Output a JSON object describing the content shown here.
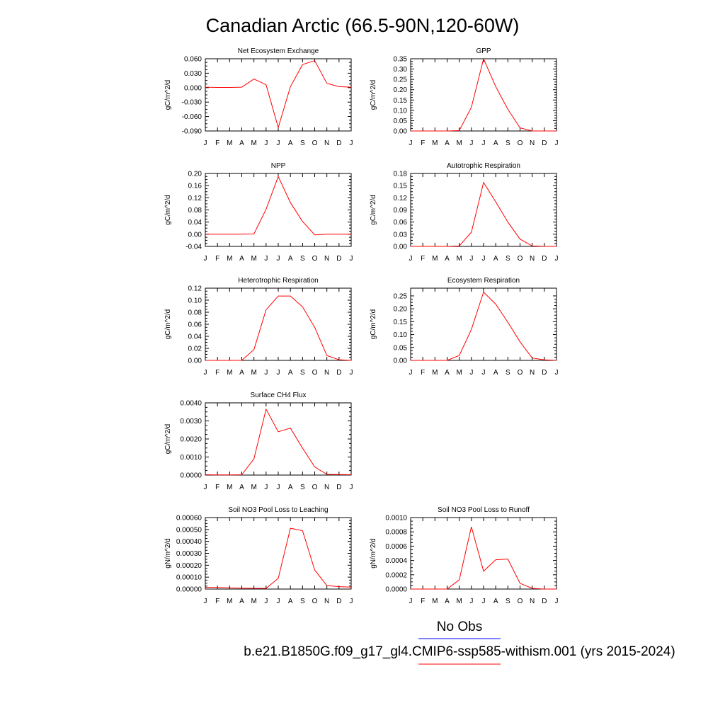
{
  "title": "Canadian Arctic (66.5-90N,120-60W)",
  "colors": {
    "model_line": "#ff0000",
    "obs_line": "#0000ff",
    "axis": "#000000"
  },
  "months": [
    "J",
    "F",
    "M",
    "A",
    "M",
    "J",
    "J",
    "A",
    "S",
    "O",
    "N",
    "D",
    "J"
  ],
  "legend": {
    "obs_label": "No Obs",
    "model_label": "b.e21.B1850G.f09_g17_gl4.CMIP6-ssp585-withism.001 (yrs 2015-2024)"
  },
  "chart_data": [
    {
      "type": "line",
      "title": "Net Ecosystem Exchange",
      "ylabel": "gC/m^2/d",
      "ylim": [
        -0.09,
        0.06
      ],
      "yticks": [
        0.06,
        0.03,
        0.0,
        -0.03,
        -0.06,
        -0.09
      ],
      "ytick_labels": [
        "0.060",
        "0.030",
        "0.000",
        "-0.030",
        "-0.060",
        "-0.090"
      ],
      "values": [
        0.001,
        0.0005,
        0.0005,
        0.001,
        0.018,
        0.006,
        -0.083,
        0.002,
        0.048,
        0.056,
        0.009,
        0.002,
        0.001
      ]
    },
    {
      "type": "line",
      "title": "GPP",
      "ylabel": "gC/m^2/d",
      "ylim": [
        0,
        0.35
      ],
      "yticks": [
        0.35,
        0.3,
        0.25,
        0.2,
        0.15,
        0.1,
        0.05,
        0.0
      ],
      "ytick_labels": [
        "0.35",
        "0.30",
        "0.25",
        "0.20",
        "0.15",
        "0.10",
        "0.05",
        "0.00"
      ],
      "values": [
        0,
        0,
        0,
        0,
        0.002,
        0.115,
        0.35,
        0.215,
        0.105,
        0.015,
        0,
        0,
        0
      ]
    },
    {
      "type": "line",
      "title": "NPP",
      "ylabel": "gC/m^2/d",
      "ylim": [
        -0.04,
        0.2
      ],
      "yticks": [
        0.2,
        0.16,
        0.12,
        0.08,
        0.04,
        0.0,
        -0.04
      ],
      "ytick_labels": [
        "0.20",
        "0.16",
        "0.12",
        "0.08",
        "0.04",
        "0.00",
        "-0.04"
      ],
      "values": [
        0,
        0,
        0,
        0,
        0.001,
        0.082,
        0.19,
        0.104,
        0.042,
        -0.002,
        0,
        0,
        0
      ]
    },
    {
      "type": "line",
      "title": "Autotrophic Respiration",
      "ylabel": "gC/m^2/d",
      "ylim": [
        0,
        0.18
      ],
      "yticks": [
        0.18,
        0.15,
        0.12,
        0.09,
        0.06,
        0.03,
        0.0
      ],
      "ytick_labels": [
        "0.18",
        "0.15",
        "0.12",
        "0.09",
        "0.06",
        "0.03",
        "0.00"
      ],
      "values": [
        0,
        0,
        0,
        0,
        0.001,
        0.035,
        0.158,
        0.11,
        0.06,
        0.018,
        0.001,
        0,
        0
      ]
    },
    {
      "type": "line",
      "title": "Heterotrophic Respiration",
      "ylabel": "gC/m^2/d",
      "ylim": [
        0,
        0.12
      ],
      "yticks": [
        0.12,
        0.1,
        0.08,
        0.06,
        0.04,
        0.02,
        0.0
      ],
      "ytick_labels": [
        "0.12",
        "0.10",
        "0.08",
        "0.06",
        "0.04",
        "0.02",
        "0.00"
      ],
      "values": [
        0,
        0,
        0,
        0,
        0.018,
        0.084,
        0.107,
        0.107,
        0.089,
        0.055,
        0.008,
        0.001,
        0
      ]
    },
    {
      "type": "line",
      "title": "Ecosystem Respiration",
      "ylabel": "gC/m^2/d",
      "ylim": [
        0,
        0.28
      ],
      "yticks": [
        0.25,
        0.2,
        0.15,
        0.1,
        0.05,
        0.0
      ],
      "ytick_labels": [
        "0.25",
        "0.20",
        "0.15",
        "0.10",
        "0.05",
        "0.00"
      ],
      "values": [
        0,
        0,
        0,
        0,
        0.019,
        0.12,
        0.265,
        0.218,
        0.148,
        0.072,
        0.009,
        0.002,
        0
      ]
    },
    {
      "type": "line",
      "title": "Surface CH4 Flux",
      "ylabel": "gC/m^2/d",
      "ylim": [
        0,
        0.004
      ],
      "yticks": [
        0.004,
        0.003,
        0.002,
        0.001,
        0.0
      ],
      "ytick_labels": [
        "0.0040",
        "0.0030",
        "0.0020",
        "0.0010",
        "0.0000"
      ],
      "values": [
        2e-05,
        1e-05,
        1e-05,
        2e-05,
        0.0009,
        0.00365,
        0.0024,
        0.0026,
        0.0015,
        0.00045,
        4e-05,
        3e-05,
        2e-05
      ]
    },
    {
      "type": "line",
      "title": "Soil NO3 Pool Loss to Leaching",
      "ylabel": "gN/m^2/d",
      "ylim": [
        0,
        0.0006
      ],
      "yticks": [
        0.0006,
        0.0005,
        0.0004,
        0.0003,
        0.0002,
        0.0001,
        0.0
      ],
      "ytick_labels": [
        "0.00060",
        "0.00050",
        "0.00040",
        "0.00030",
        "0.00020",
        "0.00010",
        "0.00000"
      ],
      "values": [
        1.5e-05,
        1.3e-05,
        1e-05,
        8e-06,
        6e-06,
        6e-06,
        9e-05,
        0.00051,
        0.00049,
        0.00016,
        3e-05,
        2e-05,
        1.6e-05
      ]
    },
    {
      "type": "line",
      "title": "Soil NO3 Pool Loss to Runoff",
      "ylabel": "gN/m^2/d",
      "ylim": [
        0,
        0.001
      ],
      "yticks": [
        0.001,
        0.0008,
        0.0006,
        0.0004,
        0.0002,
        0.0
      ],
      "ytick_labels": [
        "0.0010",
        "0.0008",
        "0.0006",
        "0.0004",
        "0.0002",
        "0.0000"
      ],
      "values": [
        0,
        0,
        0,
        0,
        0.00013,
        0.00087,
        0.00025,
        0.00041,
        0.00042,
        8e-05,
        1e-05,
        0,
        0
      ]
    }
  ]
}
